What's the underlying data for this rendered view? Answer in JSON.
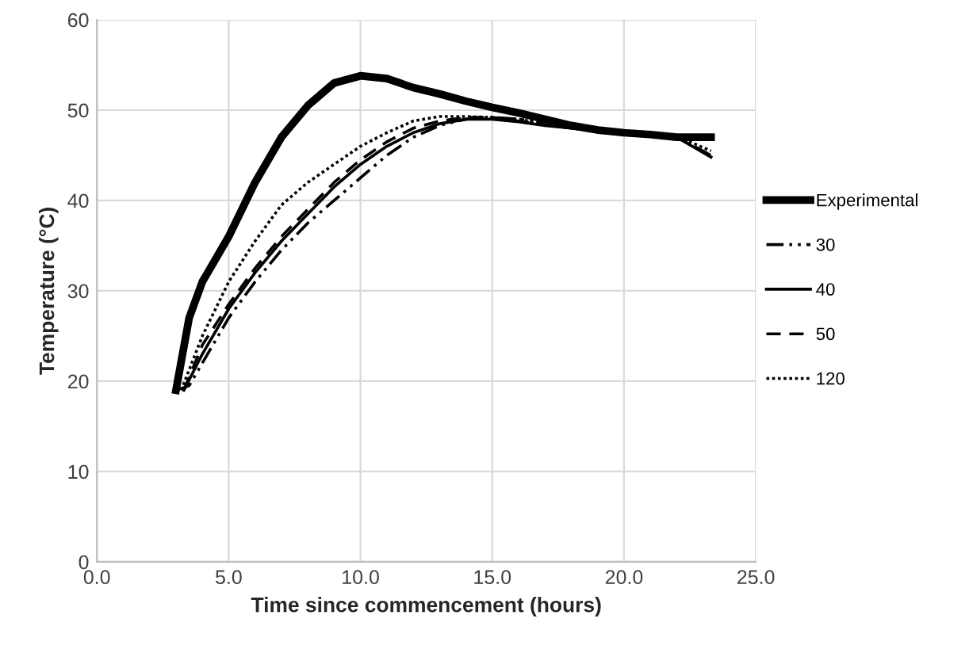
{
  "chart_data": {
    "type": "line",
    "xlabel": "Time since commencement (hours)",
    "ylabel": "Temperature (°C)",
    "xlim": [
      0,
      25
    ],
    "ylim": [
      0,
      60
    ],
    "xticks": [
      {
        "value": 0,
        "label": "0.0"
      },
      {
        "value": 5,
        "label": "5.0"
      },
      {
        "value": 10,
        "label": "10.0"
      },
      {
        "value": 15,
        "label": "15.0"
      },
      {
        "value": 20,
        "label": "20.0"
      },
      {
        "value": 25,
        "label": "25.0"
      }
    ],
    "yticks": [
      0,
      10,
      20,
      30,
      40,
      50,
      60
    ],
    "grid": true,
    "legend": "right",
    "marker": "none",
    "series": [
      {
        "name": "Experimental",
        "color": "#000000",
        "line_style": "solid",
        "x": [
          3.0,
          3.5,
          4,
          5,
          6,
          7,
          8,
          9,
          10,
          11,
          12,
          13,
          14,
          15,
          16,
          17,
          18,
          19,
          20,
          21,
          22,
          23.3
        ],
        "values": [
          19,
          27,
          31,
          36,
          42,
          47,
          50.5,
          53,
          53.8,
          53.5,
          52.5,
          51.8,
          51,
          50.3,
          49.7,
          49,
          48.3,
          47.8,
          47.5,
          47.3,
          47,
          47
        ]
      },
      {
        "name": "30",
        "color": "#000000",
        "line_style": "dashdot",
        "x": [
          3.0,
          3.5,
          4,
          5,
          6,
          7,
          8,
          9,
          10,
          11,
          12,
          13,
          14,
          15,
          16,
          17,
          18,
          19,
          20,
          21,
          22,
          23.3
        ],
        "values": [
          19,
          19.5,
          22,
          27,
          31,
          34.5,
          37.5,
          40,
          42.5,
          45,
          47,
          48.3,
          49,
          49.2,
          49,
          48.7,
          48.3,
          48,
          47.6,
          47.4,
          47,
          45
        ]
      },
      {
        "name": "40",
        "color": "#000000",
        "line_style": "solid",
        "x": [
          3.3,
          4,
          5,
          6,
          7,
          8,
          9,
          10,
          11,
          12,
          13,
          14,
          15,
          16,
          17,
          18,
          19,
          20,
          21,
          22,
          23.3
        ],
        "values": [
          19,
          23,
          28,
          32,
          35.5,
          38.5,
          41.5,
          44,
          46,
          47.5,
          48.5,
          49,
          49,
          48.7,
          48.3,
          48,
          47.7,
          47.4,
          47.3,
          47,
          44.8
        ]
      },
      {
        "name": "50",
        "color": "#000000",
        "line_style": "dashed",
        "x": [
          3.3,
          4,
          5,
          6,
          7,
          8,
          9,
          10,
          11,
          12,
          13,
          14,
          15,
          16,
          17,
          18,
          19,
          20,
          21,
          22,
          23.3
        ],
        "values": [
          19,
          24,
          28.5,
          32.5,
          36,
          39,
          42,
          44.5,
          46.5,
          48,
          48.8,
          49.2,
          49.2,
          48.8,
          48.4,
          48,
          47.7,
          47.4,
          47.3,
          47,
          45
        ]
      },
      {
        "name": "120",
        "color": "#000000",
        "line_style": "dotted",
        "x": [
          3.2,
          3.6,
          4,
          5,
          6,
          7,
          8,
          9,
          10,
          11,
          12,
          13,
          14,
          15,
          16,
          17,
          18,
          19,
          20,
          21,
          22,
          23.3
        ],
        "values": [
          19,
          22,
          25,
          31,
          35.5,
          39.5,
          42,
          44,
          46,
          47.5,
          48.8,
          49.3,
          49.3,
          49.2,
          49,
          48.5,
          48.1,
          47.8,
          47.5,
          47.3,
          47.1,
          45.5
        ]
      }
    ]
  }
}
